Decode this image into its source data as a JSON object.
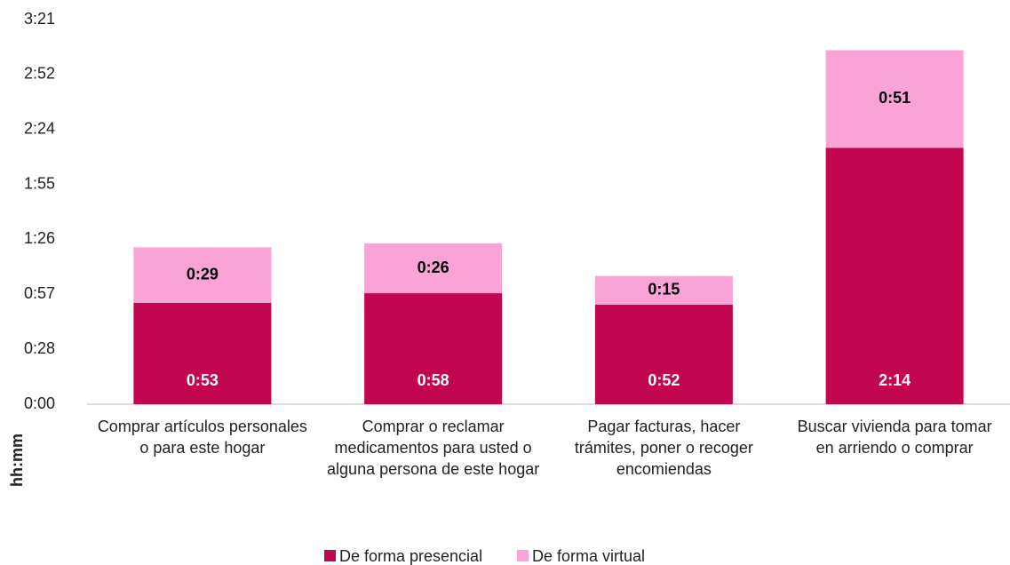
{
  "chart_data": {
    "type": "stacked_bar",
    "categories": [
      "Comprar artículos personales o para este hogar",
      "Comprar o reclamar medicamentos para usted o alguna persona de este hogar",
      "Pagar facturas, hacer trámites, poner o recoger encomiendas",
      "Buscar vivienda para tomar en arriendo o comprar"
    ],
    "series": [
      {
        "name": "De forma presencial",
        "color": "#c2064f",
        "values": [
          53,
          58,
          52,
          134
        ],
        "value_labels": [
          "0:53",
          "0:58",
          "0:52",
          "2:14"
        ]
      },
      {
        "name": "De forma virtual",
        "color": "#f9a3d6",
        "values": [
          29,
          26,
          15,
          51
        ],
        "value_labels": [
          "0:29",
          "0:26",
          "0:15",
          "0:51"
        ]
      }
    ],
    "y_label": "hh:mm",
    "ylim": [
      0,
      201
    ],
    "yticks": [
      {
        "value": 0,
        "label": "0:00"
      },
      {
        "value": 28.714,
        "label": "0:28"
      },
      {
        "value": 57.429,
        "label": "0:57"
      },
      {
        "value": 86.143,
        "label": "1:26"
      },
      {
        "value": 114.857,
        "label": "1:55"
      },
      {
        "value": 143.571,
        "label": "2:24"
      },
      {
        "value": 172.286,
        "label": "2:52"
      },
      {
        "value": 201,
        "label": "3:21"
      }
    ],
    "legend": "bottom"
  }
}
